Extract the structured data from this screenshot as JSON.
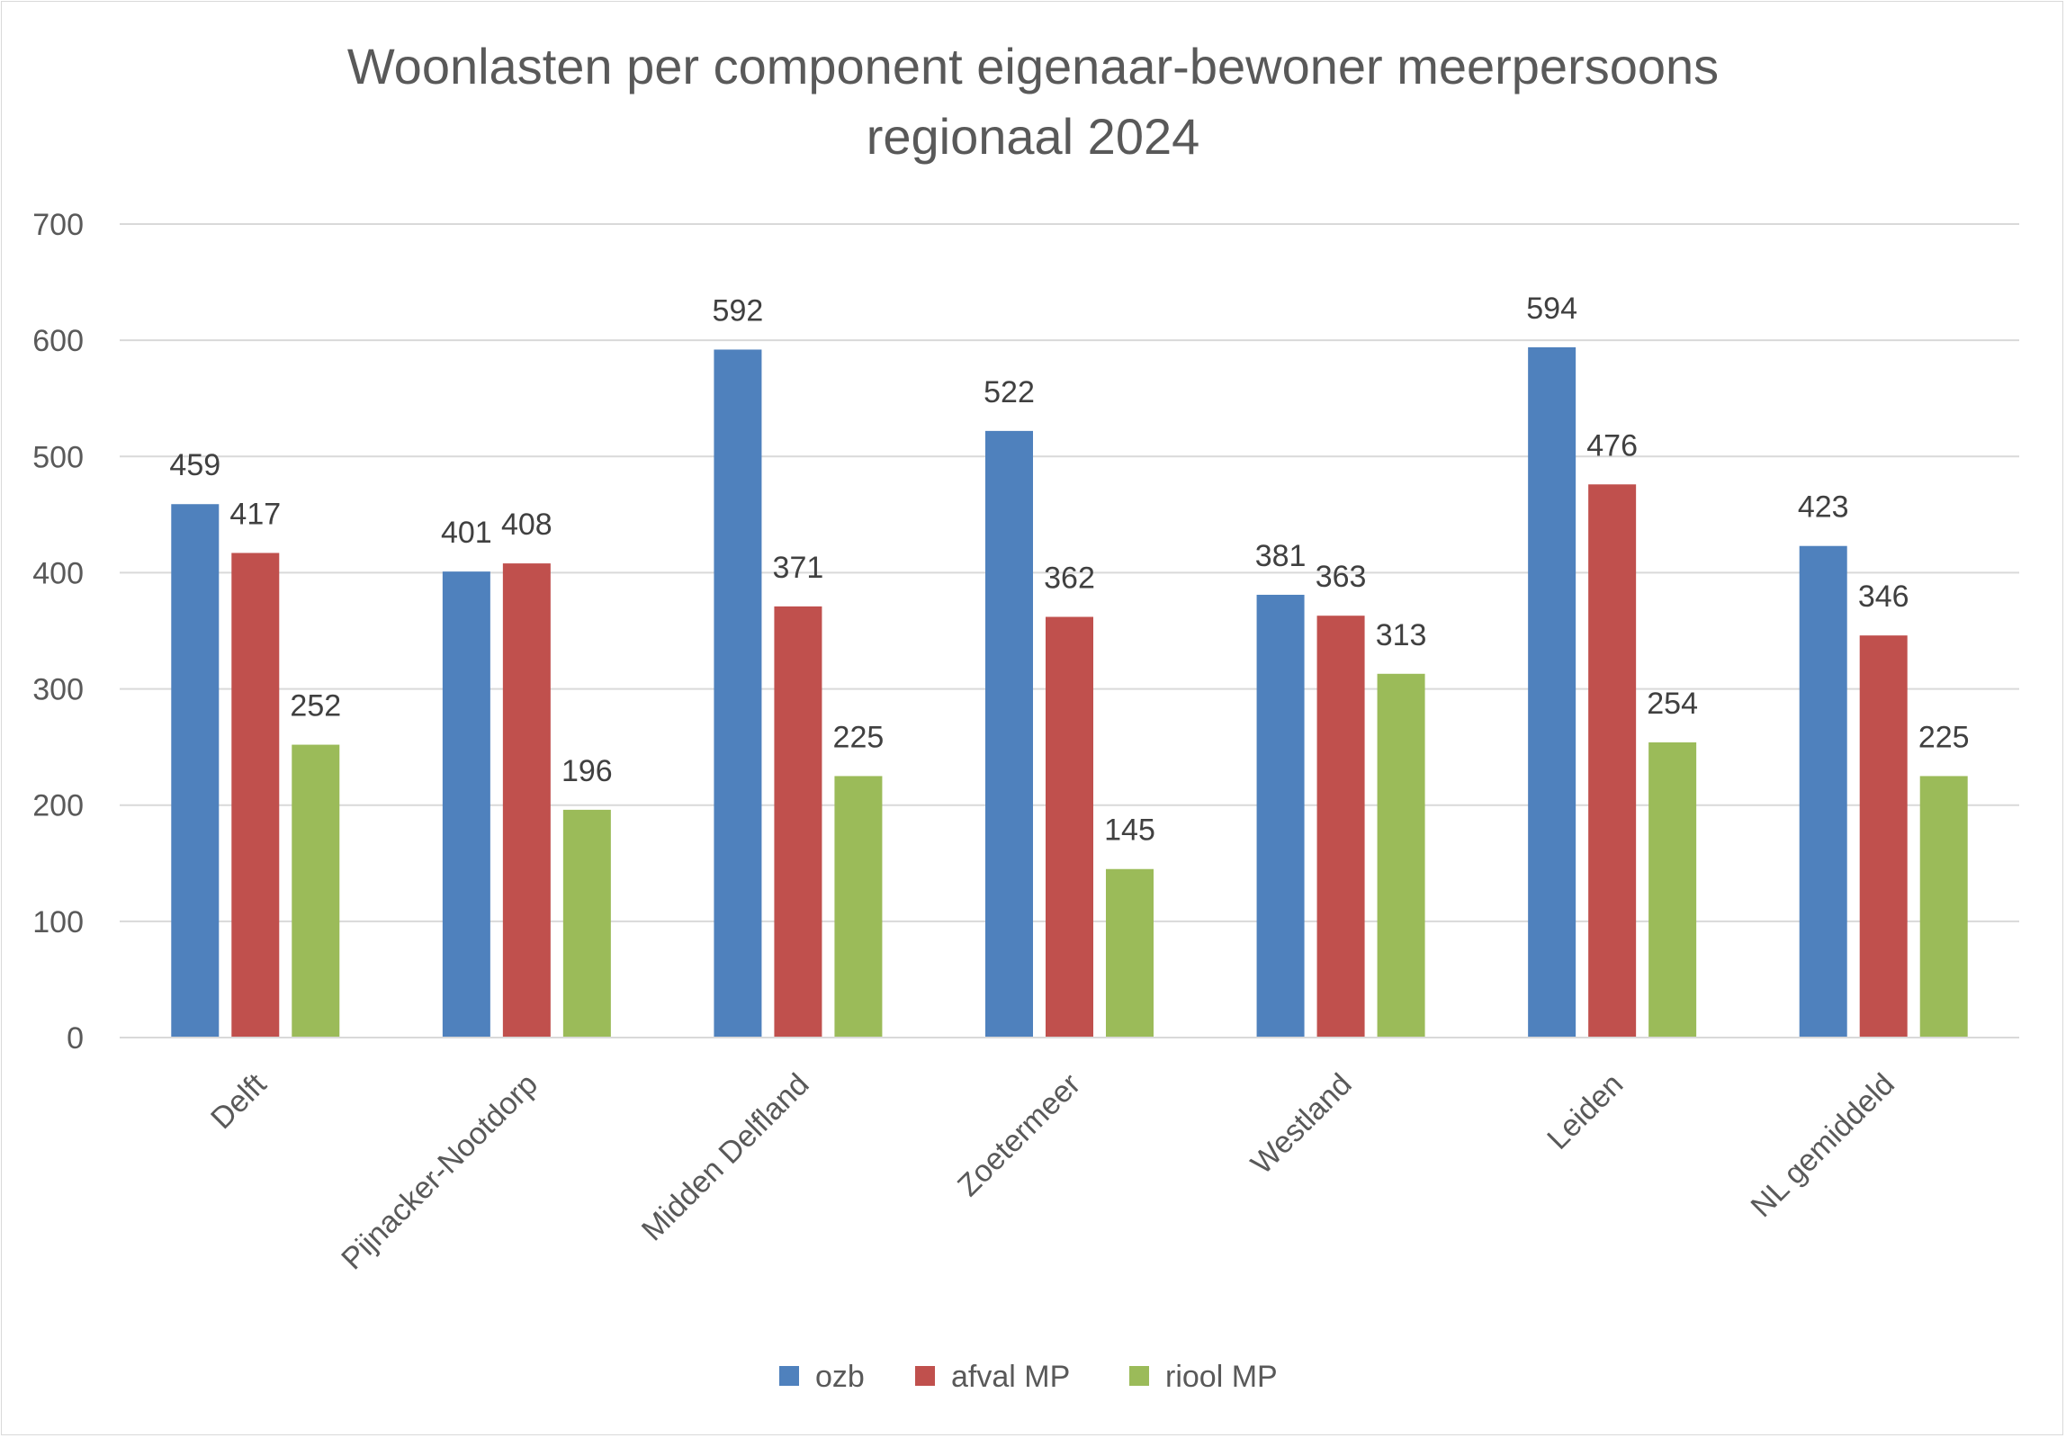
{
  "chart_data": {
    "type": "bar",
    "title_lines": [
      "Woonlasten per component eigenaar-bewoner meerpersoons",
      "regionaal 2024"
    ],
    "xlabel": "",
    "ylabel": "",
    "ylim": [
      0,
      700
    ],
    "yticks": [
      0,
      100,
      200,
      300,
      400,
      500,
      600,
      700
    ],
    "grid": true,
    "legend_position": "bottom",
    "categories": [
      "Delft",
      "Pijnacker-Nootdorp",
      "Midden Delfland",
      "Zoetermeer",
      "Westland",
      "Leiden",
      "NL gemiddeld"
    ],
    "series": [
      {
        "name": "ozb",
        "color": "#4F81BD",
        "values": [
          459,
          401,
          592,
          522,
          381,
          594,
          423
        ]
      },
      {
        "name": "afval MP",
        "color": "#C0504D",
        "values": [
          417,
          408,
          371,
          362,
          363,
          476,
          346
        ]
      },
      {
        "name": "riool MP",
        "color": "#9BBB59",
        "values": [
          252,
          196,
          225,
          145,
          313,
          254,
          225
        ]
      }
    ]
  }
}
